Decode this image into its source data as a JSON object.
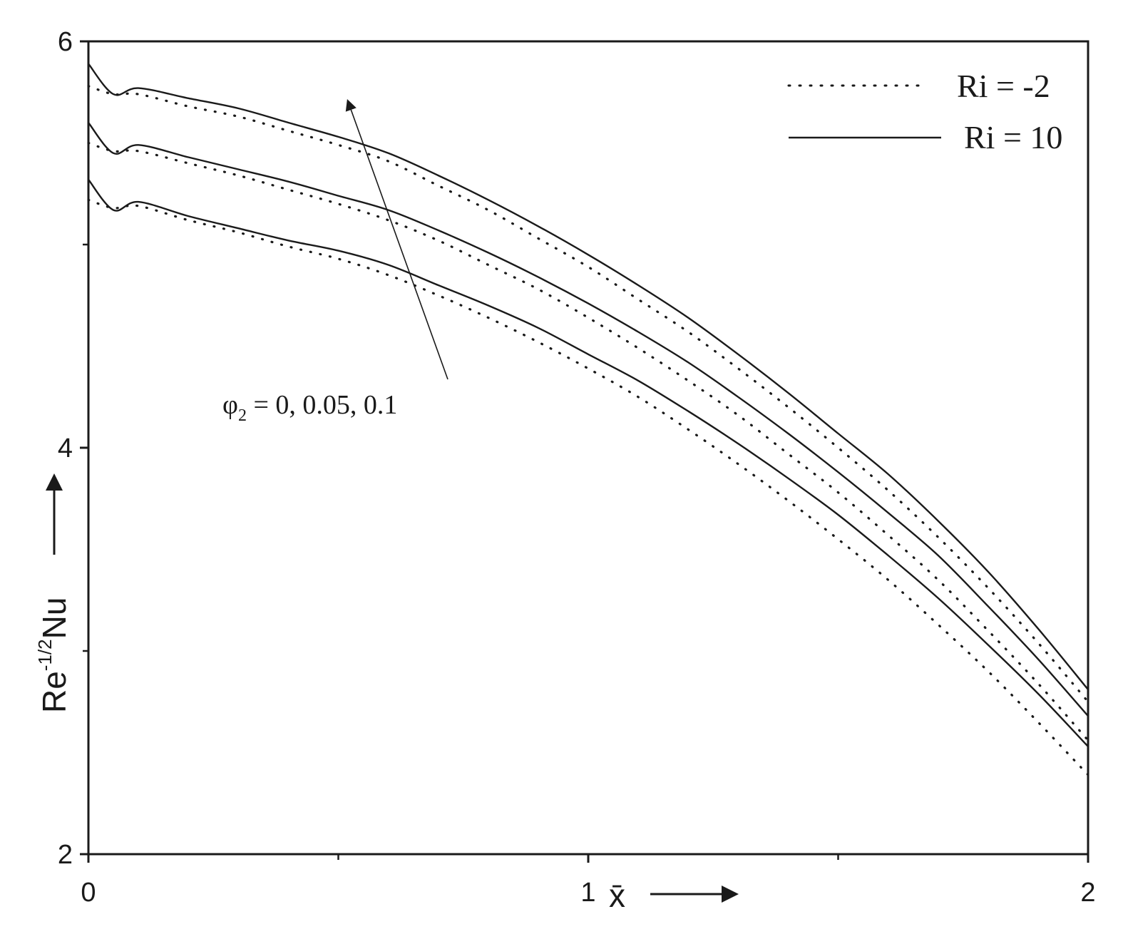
{
  "chart_data": {
    "type": "line",
    "xlabel": "x̄",
    "ylabel": {
      "main": "Re",
      "sup": "-1/2",
      "rest": "Nu"
    },
    "xlim": [
      0,
      2
    ],
    "ylim": [
      2,
      6
    ],
    "x_ticks": [
      0,
      1,
      2
    ],
    "x_minor_ticks": [
      0.5,
      1.5
    ],
    "y_ticks": [
      2,
      4,
      6
    ],
    "y_minor_ticks": [
      3,
      5
    ],
    "grid": false,
    "legend_position": "top-right",
    "legend": [
      {
        "label": "Ri = -2",
        "style": "dotted"
      },
      {
        "label": "Ri = 10",
        "style": "solid"
      }
    ],
    "annotation": {
      "symbol": "φ",
      "sub": "2",
      "text": " = 0, 0.05, 0.1",
      "arrow_direction": "increasing phi2 raises curves"
    },
    "series": [
      {
        "phi2": 0,
        "Ri": 10,
        "style": "solid",
        "x": [
          0,
          0.05,
          0.1,
          0.2,
          0.3,
          0.4,
          0.5,
          0.6,
          0.7,
          0.8,
          0.9,
          1.0,
          1.1,
          1.2,
          1.3,
          1.4,
          1.5,
          1.6,
          1.7,
          1.8,
          1.9,
          2.0
        ],
        "y": [
          5.32,
          5.17,
          5.21,
          5.14,
          5.08,
          5.02,
          4.97,
          4.9,
          4.8,
          4.7,
          4.59,
          4.46,
          4.33,
          4.18,
          4.02,
          3.85,
          3.67,
          3.47,
          3.26,
          3.03,
          2.79,
          2.53
        ]
      },
      {
        "phi2": 0.05,
        "Ri": 10,
        "style": "solid",
        "x": [
          0,
          0.05,
          0.1,
          0.2,
          0.3,
          0.4,
          0.5,
          0.6,
          0.7,
          0.8,
          0.9,
          1.0,
          1.1,
          1.2,
          1.3,
          1.4,
          1.5,
          1.6,
          1.7,
          1.8,
          1.9,
          2.0
        ],
        "y": [
          5.6,
          5.45,
          5.49,
          5.43,
          5.37,
          5.31,
          5.24,
          5.17,
          5.07,
          4.96,
          4.84,
          4.71,
          4.57,
          4.42,
          4.25,
          4.07,
          3.88,
          3.68,
          3.47,
          3.22,
          2.96,
          2.68
        ]
      },
      {
        "phi2": 0.1,
        "Ri": 10,
        "style": "solid",
        "x": [
          0,
          0.05,
          0.1,
          0.2,
          0.3,
          0.4,
          0.5,
          0.6,
          0.7,
          0.8,
          0.9,
          1.0,
          1.1,
          1.2,
          1.3,
          1.4,
          1.5,
          1.6,
          1.7,
          1.8,
          1.9,
          2.0
        ],
        "y": [
          5.89,
          5.74,
          5.77,
          5.72,
          5.67,
          5.6,
          5.53,
          5.45,
          5.34,
          5.22,
          5.09,
          4.95,
          4.8,
          4.64,
          4.46,
          4.27,
          4.07,
          3.87,
          3.64,
          3.39,
          3.11,
          2.81
        ]
      },
      {
        "phi2": 0,
        "Ri": -2,
        "style": "dotted",
        "x": [
          0,
          0.05,
          0.1,
          0.2,
          0.3,
          0.4,
          0.5,
          0.6,
          0.7,
          0.8,
          0.9,
          1.0,
          1.1,
          1.2,
          1.3,
          1.4,
          1.5,
          1.6,
          1.7,
          1.8,
          1.9,
          2.0
        ],
        "y": [
          5.22,
          5.18,
          5.19,
          5.12,
          5.06,
          4.99,
          4.93,
          4.85,
          4.75,
          4.64,
          4.52,
          4.39,
          4.25,
          4.09,
          3.92,
          3.74,
          3.55,
          3.35,
          3.13,
          2.9,
          2.65,
          2.39
        ]
      },
      {
        "phi2": 0.05,
        "Ri": -2,
        "style": "dotted",
        "x": [
          0,
          0.05,
          0.1,
          0.2,
          0.3,
          0.4,
          0.5,
          0.6,
          0.7,
          0.8,
          0.9,
          1.0,
          1.1,
          1.2,
          1.3,
          1.4,
          1.5,
          1.6,
          1.7,
          1.8,
          1.9,
          2.0
        ],
        "y": [
          5.5,
          5.46,
          5.46,
          5.4,
          5.34,
          5.27,
          5.2,
          5.12,
          5.02,
          4.9,
          4.78,
          4.64,
          4.49,
          4.33,
          4.16,
          3.97,
          3.78,
          3.57,
          3.35,
          3.1,
          2.84,
          2.56
        ]
      },
      {
        "phi2": 0.1,
        "Ri": -2,
        "style": "dotted",
        "x": [
          0,
          0.05,
          0.1,
          0.2,
          0.3,
          0.4,
          0.5,
          0.6,
          0.7,
          0.8,
          0.9,
          1.0,
          1.1,
          1.2,
          1.3,
          1.4,
          1.5,
          1.6,
          1.7,
          1.8,
          1.9,
          2.0
        ],
        "y": [
          5.78,
          5.74,
          5.74,
          5.68,
          5.63,
          5.56,
          5.49,
          5.41,
          5.29,
          5.17,
          5.03,
          4.89,
          4.73,
          4.57,
          4.39,
          4.2,
          4.0,
          3.79,
          3.56,
          3.31,
          3.04,
          2.75
        ]
      }
    ]
  }
}
